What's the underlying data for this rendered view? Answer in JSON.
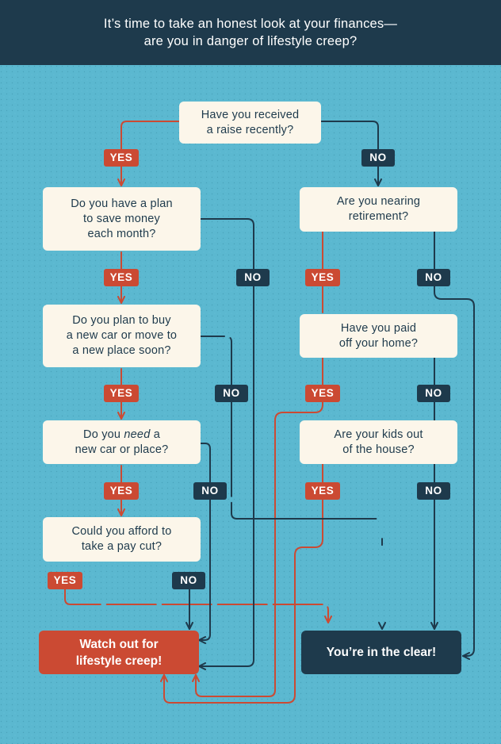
{
  "header": {
    "line1": "It’s time to take an honest look at your finances—",
    "line2": "are you in danger of lifestyle creep?"
  },
  "questions": {
    "raise": {
      "line1": "Have you received",
      "line2": "a raise recently?"
    },
    "plan": {
      "line1": "Do you have a plan",
      "line2": "to save money",
      "line3": "each month?"
    },
    "buy": {
      "line1": "Do you plan to buy",
      "line2": "a new car or move to",
      "line3": "a new place soon?"
    },
    "need": {
      "pre": "Do you ",
      "em": "need",
      "post": " a",
      "line2": "new car or place?"
    },
    "paycut": {
      "line1": "Could you afford to",
      "line2": "take a pay cut?"
    },
    "retire": {
      "line1": "Are you nearing",
      "line2": "retirement?"
    },
    "home": {
      "line1": "Have you paid",
      "line2": "off your home?"
    },
    "kids": {
      "line1": "Are your kids out",
      "line2": "of the house?"
    }
  },
  "answers": {
    "yes": "YES",
    "no": "NO"
  },
  "results": {
    "danger": {
      "line1": "Watch out for",
      "line2": "lifestyle creep!"
    },
    "clear": {
      "line1": "You’re in the clear!"
    }
  },
  "colors": {
    "background": "#5bb8d0",
    "header": "#1e3a4c",
    "box": "#fcf6ea",
    "yes": "#cb4a33",
    "no": "#1e3a4c"
  }
}
